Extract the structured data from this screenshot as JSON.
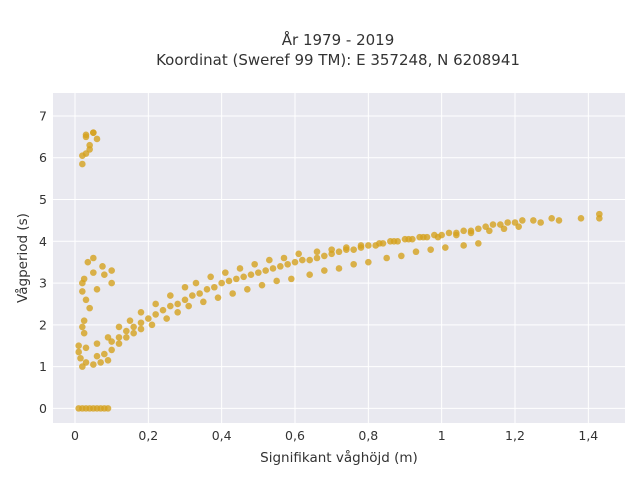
{
  "chart_data": {
    "type": "scatter",
    "title_lines": [
      "År 1979 - 2019",
      "Koordinat (Sweref 99 TM): E 357248, N 6208941"
    ],
    "xlabel": "Signifikant våghöjd (m)",
    "ylabel": "Vågperiod (s)",
    "xlim": [
      -0.06,
      1.5
    ],
    "ylim": [
      -0.35,
      7.55
    ],
    "x_ticks": [
      0,
      0.2,
      0.4,
      0.6,
      0.8,
      1,
      1.2,
      1.4
    ],
    "x_tick_labels": [
      "0",
      "0,2",
      "0,4",
      "0,6",
      "0,8",
      "1",
      "1,2",
      "1,4"
    ],
    "y_ticks": [
      0,
      1,
      2,
      3,
      4,
      5,
      6,
      7
    ],
    "y_tick_labels": [
      "0",
      "1",
      "2",
      "3",
      "4",
      "5",
      "6",
      "7"
    ],
    "grid": true,
    "marker_color": "#D4A11E",
    "plot_background": "#E9E9F0",
    "series": [
      {
        "x": [
          0.01,
          0.03,
          0.05,
          0.07,
          0.09,
          0.02,
          0.04,
          0.06,
          0.08,
          0.03,
          0.05,
          0.07,
          0.09,
          0.1,
          0.12,
          0.14,
          0.16,
          0.18,
          0.2,
          0.22,
          0.24,
          0.26,
          0.28,
          0.3,
          0.32,
          0.34,
          0.36,
          0.38,
          0.4,
          0.42,
          0.44,
          0.46,
          0.48,
          0.5,
          0.52,
          0.54,
          0.56,
          0.58,
          0.6,
          0.62,
          0.64,
          0.66,
          0.68,
          0.7,
          0.72,
          0.74,
          0.76,
          0.78,
          0.8,
          0.82,
          0.84,
          0.86,
          0.88,
          0.9,
          0.92,
          0.94,
          0.96,
          0.98,
          1.0,
          1.02,
          1.04,
          1.06,
          1.08,
          1.1,
          1.12,
          1.14,
          1.16,
          1.18,
          1.2,
          1.22,
          1.25,
          1.27,
          1.3,
          1.32,
          1.38,
          1.43,
          1.43,
          0.02,
          0.03,
          0.04,
          0.03,
          0.05,
          0.06,
          0.02,
          0.04,
          0.03,
          0.05,
          0.01,
          0.02,
          0.04,
          0.06,
          0.08,
          0.1,
          0.025,
          0.05,
          0.075,
          0.1,
          0.01,
          0.03,
          0.06,
          0.09,
          0.12,
          0.15,
          0.18,
          0.22,
          0.26,
          0.3,
          0.33,
          0.37,
          0.41,
          0.45,
          0.49,
          0.53,
          0.57,
          0.61,
          0.66,
          0.7,
          0.74,
          0.78,
          0.83,
          0.87,
          0.91,
          0.95,
          0.99,
          1.04,
          1.08,
          1.13,
          1.17,
          1.21,
          0.025,
          0.02,
          0.035,
          0.05,
          0.02,
          0.015,
          0.025,
          0.03,
          0.02,
          0.06,
          0.08,
          0.1,
          0.12,
          0.14,
          0.16,
          0.18,
          0.21,
          0.25,
          0.28,
          0.31,
          0.35,
          0.39,
          0.43,
          0.47,
          0.51,
          0.55,
          0.59,
          0.64,
          0.68,
          0.72,
          0.76,
          0.8,
          0.85,
          0.89,
          0.93,
          0.97,
          1.01,
          1.06,
          1.1
        ],
        "y": [
          0,
          0,
          0,
          0,
          0,
          0,
          0,
          0,
          0,
          1.1,
          1.05,
          1.1,
          1.15,
          1.6,
          1.7,
          1.85,
          1.95,
          2.05,
          2.15,
          2.25,
          2.35,
          2.45,
          2.5,
          2.6,
          2.7,
          2.75,
          2.85,
          2.9,
          3.0,
          3.05,
          3.1,
          3.15,
          3.2,
          3.25,
          3.3,
          3.35,
          3.4,
          3.45,
          3.5,
          3.55,
          3.55,
          3.6,
          3.65,
          3.7,
          3.75,
          3.8,
          3.8,
          3.85,
          3.9,
          3.9,
          3.95,
          4.0,
          4.0,
          4.05,
          4.05,
          4.1,
          4.1,
          4.15,
          4.15,
          4.2,
          4.2,
          4.25,
          4.25,
          4.3,
          4.35,
          4.4,
          4.4,
          4.45,
          4.45,
          4.5,
          4.5,
          4.45,
          4.55,
          4.5,
          4.55,
          4.65,
          4.55,
          5.85,
          6.1,
          6.3,
          6.5,
          6.6,
          6.45,
          6.05,
          6.2,
          6.55,
          6.6,
          1.5,
          1.95,
          2.4,
          2.85,
          3.2,
          3.3,
          3.1,
          3.25,
          3.4,
          3.0,
          1.35,
          1.45,
          1.55,
          1.7,
          1.95,
          2.1,
          2.3,
          2.5,
          2.7,
          2.9,
          3.0,
          3.15,
          3.25,
          3.35,
          3.45,
          3.55,
          3.6,
          3.7,
          3.75,
          3.8,
          3.85,
          3.9,
          3.95,
          4.0,
          4.05,
          4.1,
          4.1,
          4.15,
          4.2,
          4.25,
          4.3,
          4.35,
          2.1,
          2.8,
          3.5,
          3.6,
          1.0,
          1.2,
          1.8,
          2.6,
          3.0,
          1.25,
          1.3,
          1.4,
          1.55,
          1.7,
          1.8,
          1.9,
          2.0,
          2.15,
          2.3,
          2.45,
          2.55,
          2.65,
          2.75,
          2.85,
          2.95,
          3.05,
          3.1,
          3.2,
          3.3,
          3.35,
          3.45,
          3.5,
          3.6,
          3.65,
          3.75,
          3.8,
          3.85,
          3.9,
          3.95
        ]
      }
    ]
  }
}
